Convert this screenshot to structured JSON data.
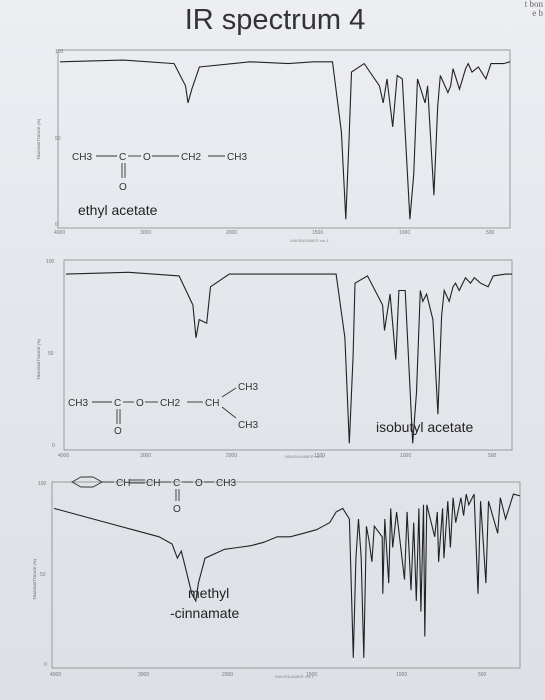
{
  "page": {
    "title": "IR spectrum 4",
    "corner_note": [
      "t bon",
      "e b"
    ]
  },
  "chart_data": [
    {
      "type": "line",
      "name": "ethyl-acetate",
      "compound_label": "ethyl acetate",
      "formula": {
        "top": [
          "CH3",
          "C",
          "O",
          "CH2",
          "CH3"
        ],
        "carbonyl_oxygen": "O"
      },
      "xlabel": "WAVENUMBER cm-1",
      "ylabel": "TRANSMITTANCE (%)",
      "x_range": [
        4000,
        450
      ],
      "y_range": [
        0,
        100
      ],
      "x_ticks": [
        "4000",
        "3000",
        "2000",
        "1500",
        "1000",
        "500"
      ],
      "y_ticks": [
        "100",
        "50",
        "0"
      ],
      "points": [
        [
          4000,
          96
        ],
        [
          3500,
          97
        ],
        [
          3100,
          95
        ],
        [
          3010,
          82
        ],
        [
          2990,
          72
        ],
        [
          2960,
          80
        ],
        [
          2900,
          93
        ],
        [
          2500,
          96
        ],
        [
          2200,
          95
        ],
        [
          2000,
          96
        ],
        [
          1850,
          96
        ],
        [
          1780,
          55
        ],
        [
          1745,
          4
        ],
        [
          1720,
          50
        ],
        [
          1700,
          90
        ],
        [
          1600,
          95
        ],
        [
          1480,
          82
        ],
        [
          1450,
          72
        ],
        [
          1420,
          86
        ],
        [
          1375,
          58
        ],
        [
          1340,
          88
        ],
        [
          1300,
          86
        ],
        [
          1240,
          4
        ],
        [
          1210,
          30
        ],
        [
          1180,
          86
        ],
        [
          1120,
          72
        ],
        [
          1100,
          82
        ],
        [
          1050,
          18
        ],
        [
          1020,
          70
        ],
        [
          1000,
          88
        ],
        [
          940,
          78
        ],
        [
          918,
          82
        ],
        [
          900,
          92
        ],
        [
          848,
          80
        ],
        [
          800,
          92
        ],
        [
          780,
          95
        ],
        [
          750,
          90
        ],
        [
          700,
          93
        ],
        [
          640,
          86
        ],
        [
          600,
          95
        ],
        [
          500,
          95
        ],
        [
          450,
          96
        ]
      ]
    },
    {
      "type": "line",
      "name": "isobutyl-acetate",
      "compound_label": "isobutyl acetate",
      "formula": {
        "main": [
          "CH3",
          "C",
          "O",
          "CH2",
          "CH"
        ],
        "branch_up": "CH3",
        "branch_down": "CH3",
        "carbonyl_oxygen": "O"
      },
      "xlabel": "WAVENUMBER cm-1",
      "ylabel": "TRANSMITTANCE (%)",
      "x_range": [
        4000,
        450
      ],
      "y_range": [
        0,
        100
      ],
      "x_ticks": [
        "4000",
        "3000",
        "2000",
        "1500",
        "1000",
        "500"
      ],
      "y_ticks": [
        "100",
        "50",
        "0"
      ],
      "points": [
        [
          4000,
          95
        ],
        [
          3500,
          96
        ],
        [
          3100,
          94
        ],
        [
          2990,
          78
        ],
        [
          2965,
          60
        ],
        [
          2940,
          70
        ],
        [
          2880,
          68
        ],
        [
          2850,
          88
        ],
        [
          2700,
          95
        ],
        [
          2200,
          95
        ],
        [
          2000,
          95
        ],
        [
          1850,
          95
        ],
        [
          1780,
          60
        ],
        [
          1745,
          2
        ],
        [
          1715,
          50
        ],
        [
          1700,
          90
        ],
        [
          1600,
          94
        ],
        [
          1480,
          78
        ],
        [
          1465,
          64
        ],
        [
          1420,
          84
        ],
        [
          1375,
          48
        ],
        [
          1350,
          86
        ],
        [
          1300,
          86
        ],
        [
          1240,
          2
        ],
        [
          1210,
          30
        ],
        [
          1180,
          86
        ],
        [
          1160,
          80
        ],
        [
          1130,
          84
        ],
        [
          1080,
          70
        ],
        [
          1040,
          18
        ],
        [
          1010,
          72
        ],
        [
          990,
          86
        ],
        [
          950,
          80
        ],
        [
          920,
          88
        ],
        [
          900,
          90
        ],
        [
          870,
          86
        ],
        [
          820,
          93
        ],
        [
          780,
          90
        ],
        [
          750,
          93
        ],
        [
          700,
          90
        ],
        [
          640,
          88
        ],
        [
          600,
          94
        ],
        [
          500,
          95
        ],
        [
          450,
          95
        ]
      ]
    },
    {
      "type": "line",
      "name": "methyl-cinnamate",
      "compound_label_lines": [
        "methyl",
        "-cinnamate"
      ],
      "formula": {
        "chain": [
          "CH",
          "CH",
          "C",
          "O",
          "CH3"
        ],
        "carbonyl_oxygen": "O"
      },
      "xlabel": "WAVENUMBER cm-1",
      "ylabel": "TRANSMITTANCE (%)",
      "x_range": [
        4000,
        450
      ],
      "y_range": [
        0,
        100
      ],
      "x_ticks": [
        "4000",
        "3000",
        "2000",
        "1500",
        "1000",
        "500"
      ],
      "y_ticks": [
        "100",
        "50",
        "0"
      ],
      "points": [
        [
          4000,
          88
        ],
        [
          3800,
          84
        ],
        [
          3600,
          80
        ],
        [
          3400,
          76
        ],
        [
          3200,
          72
        ],
        [
          3100,
          68
        ],
        [
          3060,
          60
        ],
        [
          3030,
          64
        ],
        [
          3000,
          55
        ],
        [
          2950,
          40
        ],
        [
          2920,
          36
        ],
        [
          2900,
          46
        ],
        [
          2850,
          60
        ],
        [
          2700,
          65
        ],
        [
          2600,
          66
        ],
        [
          2500,
          67
        ],
        [
          2400,
          69
        ],
        [
          2300,
          72
        ],
        [
          2200,
          72
        ],
        [
          2100,
          74
        ],
        [
          2000,
          76
        ],
        [
          1950,
          78
        ],
        [
          1900,
          80
        ],
        [
          1850,
          86
        ],
        [
          1800,
          88
        ],
        [
          1750,
          82
        ],
        [
          1720,
          4
        ],
        [
          1700,
          60
        ],
        [
          1680,
          82
        ],
        [
          1660,
          60
        ],
        [
          1640,
          4
        ],
        [
          1620,
          78
        ],
        [
          1600,
          70
        ],
        [
          1578,
          58
        ],
        [
          1560,
          78
        ],
        [
          1500,
          72
        ],
        [
          1495,
          40
        ],
        [
          1480,
          82
        ],
        [
          1450,
          46
        ],
        [
          1435,
          88
        ],
        [
          1420,
          66
        ],
        [
          1390,
          86
        ],
        [
          1330,
          48
        ],
        [
          1310,
          86
        ],
        [
          1280,
          42
        ],
        [
          1260,
          80
        ],
        [
          1240,
          36
        ],
        [
          1220,
          88
        ],
        [
          1205,
          30
        ],
        [
          1185,
          90
        ],
        [
          1175,
          16
        ],
        [
          1160,
          90
        ],
        [
          1100,
          72
        ],
        [
          1080,
          86
        ],
        [
          1070,
          58
        ],
        [
          1040,
          88
        ],
        [
          1030,
          60
        ],
        [
          1000,
          92
        ],
        [
          980,
          66
        ],
        [
          960,
          94
        ],
        [
          940,
          80
        ],
        [
          900,
          94
        ],
        [
          880,
          84
        ],
        [
          860,
          96
        ],
        [
          840,
          90
        ],
        [
          800,
          96
        ],
        [
          770,
          40
        ],
        [
          750,
          92
        ],
        [
          710,
          46
        ],
        [
          690,
          92
        ],
        [
          620,
          74
        ],
        [
          600,
          94
        ],
        [
          560,
          82
        ],
        [
          500,
          96
        ],
        [
          450,
          95
        ]
      ]
    }
  ]
}
